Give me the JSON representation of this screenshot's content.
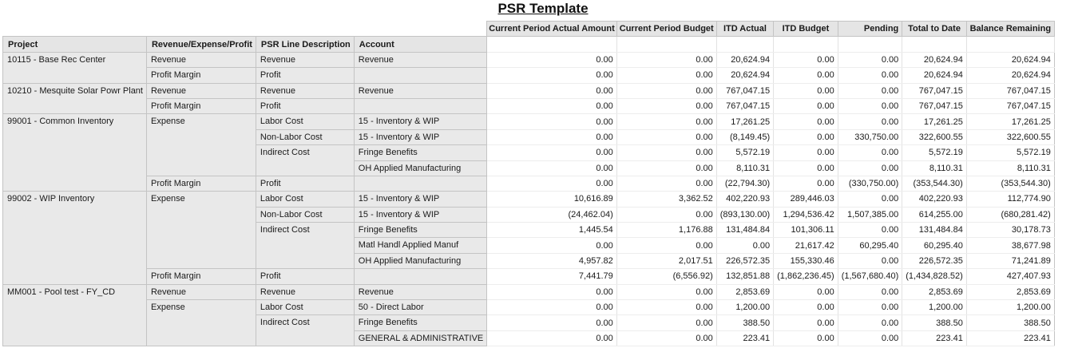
{
  "report": {
    "title": "PSR Template"
  },
  "headers": {
    "left": [
      "Project",
      "Revenue/Expense/Profit",
      "PSR Line Description",
      "Account"
    ],
    "right": [
      "Current Period Actual Amount",
      "Current Period Budget",
      "ITD Actual",
      "ITD Budget",
      "Pending",
      "Total to Date",
      "Balance Remaining"
    ]
  },
  "rows": [
    {
      "project": "10115 - Base Rec Center",
      "rep": "Revenue",
      "line": "Revenue",
      "account": "Revenue",
      "values": [
        "0.00",
        "0.00",
        "20,624.94",
        "0.00",
        "0.00",
        "20,624.94",
        "20,624.94"
      ]
    },
    {
      "project": "",
      "rep": "Profit Margin",
      "line": "Profit",
      "account": "",
      "values": [
        "0.00",
        "0.00",
        "20,624.94",
        "0.00",
        "0.00",
        "20,624.94",
        "20,624.94"
      ]
    },
    {
      "project": "10210 - Mesquite Solar Powr Plant",
      "rep": "Revenue",
      "line": "Revenue",
      "account": "Revenue",
      "values": [
        "0.00",
        "0.00",
        "767,047.15",
        "0.00",
        "0.00",
        "767,047.15",
        "767,047.15"
      ]
    },
    {
      "project": "",
      "rep": "Profit Margin",
      "line": "Profit",
      "account": "",
      "values": [
        "0.00",
        "0.00",
        "767,047.15",
        "0.00",
        "0.00",
        "767,047.15",
        "767,047.15"
      ]
    },
    {
      "project": "99001 - Common Inventory",
      "rep": "Expense",
      "line": "Labor Cost",
      "account": "15 - Inventory & WIP",
      "values": [
        "0.00",
        "0.00",
        "17,261.25",
        "0.00",
        "0.00",
        "17,261.25",
        "17,261.25"
      ]
    },
    {
      "project": "",
      "rep": "",
      "line": "Non-Labor Cost",
      "account": "15 - Inventory & WIP",
      "values": [
        "0.00",
        "0.00",
        "(8,149.45)",
        "0.00",
        "330,750.00",
        "322,600.55",
        "322,600.55"
      ]
    },
    {
      "project": "",
      "rep": "",
      "line": "Indirect Cost",
      "account": "Fringe Benefits",
      "values": [
        "0.00",
        "0.00",
        "5,572.19",
        "0.00",
        "0.00",
        "5,572.19",
        "5,572.19"
      ]
    },
    {
      "project": "",
      "rep": "",
      "line": "",
      "account": "OH Applied Manufacturing",
      "values": [
        "0.00",
        "0.00",
        "8,110.31",
        "0.00",
        "0.00",
        "8,110.31",
        "8,110.31"
      ]
    },
    {
      "project": "",
      "rep": "Profit Margin",
      "line": "Profit",
      "account": "",
      "values": [
        "0.00",
        "0.00",
        "(22,794.30)",
        "0.00",
        "(330,750.00)",
        "(353,544.30)",
        "(353,544.30)"
      ]
    },
    {
      "project": "99002 - WIP Inventory",
      "rep": "Expense",
      "line": "Labor Cost",
      "account": "15 - Inventory & WIP",
      "values": [
        "10,616.89",
        "3,362.52",
        "402,220.93",
        "289,446.03",
        "0.00",
        "402,220.93",
        "112,774.90"
      ]
    },
    {
      "project": "",
      "rep": "",
      "line": "Non-Labor Cost",
      "account": "15 - Inventory & WIP",
      "values": [
        "(24,462.04)",
        "0.00",
        "(893,130.00)",
        "1,294,536.42",
        "1,507,385.00",
        "614,255.00",
        "(680,281.42)"
      ]
    },
    {
      "project": "",
      "rep": "",
      "line": "Indirect Cost",
      "account": "Fringe Benefits",
      "values": [
        "1,445.54",
        "1,176.88",
        "131,484.84",
        "101,306.11",
        "0.00",
        "131,484.84",
        "30,178.73"
      ]
    },
    {
      "project": "",
      "rep": "",
      "line": "",
      "account": "Matl Handl Applied Manuf",
      "values": [
        "0.00",
        "0.00",
        "0.00",
        "21,617.42",
        "60,295.40",
        "60,295.40",
        "38,677.98"
      ]
    },
    {
      "project": "",
      "rep": "",
      "line": "",
      "account": "OH Applied Manufacturing",
      "values": [
        "4,957.82",
        "2,017.51",
        "226,572.35",
        "155,330.46",
        "0.00",
        "226,572.35",
        "71,241.89"
      ]
    },
    {
      "project": "",
      "rep": "Profit Margin",
      "line": "Profit",
      "account": "",
      "values": [
        "7,441.79",
        "(6,556.92)",
        "132,851.88",
        "(1,862,236.45)",
        "(1,567,680.40)",
        "(1,434,828.52)",
        "427,407.93"
      ]
    },
    {
      "project": "MM001 - Pool test - FY_CD",
      "rep": "Revenue",
      "line": "Revenue",
      "account": "Revenue",
      "values": [
        "0.00",
        "0.00",
        "2,853.69",
        "0.00",
        "0.00",
        "2,853.69",
        "2,853.69"
      ]
    },
    {
      "project": "",
      "rep": "Expense",
      "line": "Labor Cost",
      "account": "50 - Direct Labor",
      "values": [
        "0.00",
        "0.00",
        "1,200.00",
        "0.00",
        "0.00",
        "1,200.00",
        "1,200.00"
      ]
    },
    {
      "project": "",
      "rep": "",
      "line": "Indirect Cost",
      "account": "Fringe Benefits",
      "values": [
        "0.00",
        "0.00",
        "388.50",
        "0.00",
        "0.00",
        "388.50",
        "388.50"
      ]
    },
    {
      "project": "",
      "rep": "",
      "line": "",
      "account": "GENERAL & ADMINISTRATIVE",
      "values": [
        "0.00",
        "0.00",
        "223.41",
        "0.00",
        "0.00",
        "223.41",
        "223.41"
      ]
    }
  ]
}
